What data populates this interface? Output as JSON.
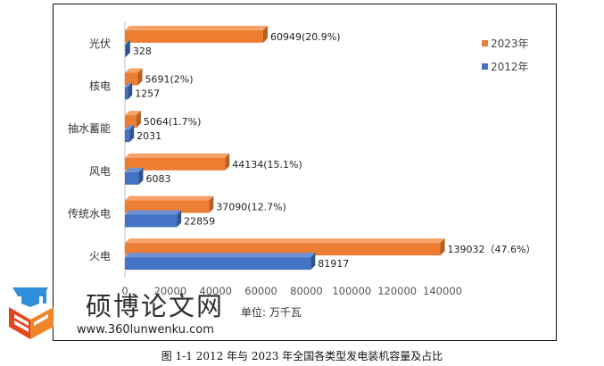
{
  "chart_data": {
    "type": "bar",
    "orientation": "horizontal",
    "categories": [
      "火电",
      "传统水电",
      "风电",
      "抽水蓄能",
      "核电",
      "光伏"
    ],
    "series": [
      {
        "name": "2023年",
        "values": [
          139032,
          37090,
          44134,
          5064,
          5691,
          60949
        ],
        "labels": [
          "139032（47.6%）",
          "37090(12.7%)",
          "44134(15.1%)",
          "5064(1.7%)",
          "5691(2%)",
          "60949(20.9%)"
        ]
      },
      {
        "name": "2012年",
        "values": [
          81917,
          22859,
          6083,
          2031,
          1257,
          328
        ],
        "labels": [
          "81917",
          "22859",
          "6083",
          "2031",
          "1257",
          "328"
        ]
      }
    ],
    "xlim": [
      0,
      140000
    ],
    "xticks": [
      "0",
      "20000",
      "40000",
      "60000",
      "80000",
      "100000",
      "120000",
      "140000"
    ],
    "xtick_values": [
      0,
      20000,
      40000,
      60000,
      80000,
      100000,
      120000,
      140000
    ],
    "unit_label": "单位:  万千瓦",
    "legend_position": "top-right",
    "grid": false
  },
  "colors": {
    "s2023": "#ED7D31",
    "s2012": "#4472C4"
  },
  "caption": "图 1-1 2012 年与 2023 年全国各类型发电装机容量及占比",
  "watermark": {
    "name": "硕博论文网",
    "url": "www.360lunwenku.com"
  }
}
